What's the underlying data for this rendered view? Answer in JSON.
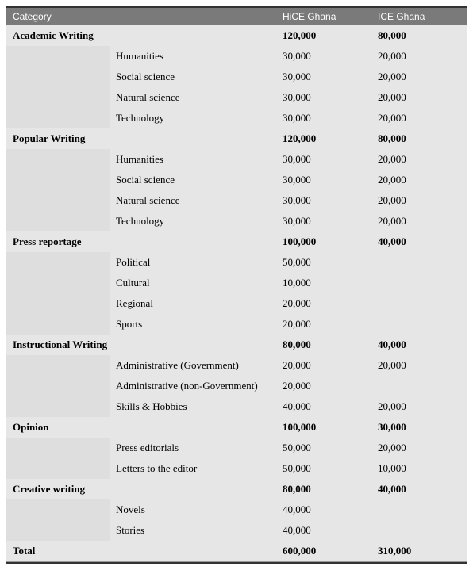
{
  "table": {
    "headers": [
      "Category",
      "",
      "HiCE Ghana",
      "ICE Ghana"
    ],
    "rows": [
      {
        "type": "category",
        "label": "Academic Writing",
        "hice": "120,000",
        "ice": "80,000"
      },
      {
        "type": "sub",
        "label": "Humanities",
        "hice": "30,000",
        "ice": "20,000"
      },
      {
        "type": "sub",
        "label": "Social science",
        "hice": "30,000",
        "ice": "20,000"
      },
      {
        "type": "sub",
        "label": "Natural science",
        "hice": "30,000",
        "ice": "20,000"
      },
      {
        "type": "sub",
        "label": "Technology",
        "hice": "30,000",
        "ice": "20,000"
      },
      {
        "type": "category",
        "label": "Popular Writing",
        "hice": "120,000",
        "ice": "80,000"
      },
      {
        "type": "sub",
        "label": "Humanities",
        "hice": "30,000",
        "ice": "20,000"
      },
      {
        "type": "sub",
        "label": "Social science",
        "hice": "30,000",
        "ice": "20,000"
      },
      {
        "type": "sub",
        "label": "Natural science",
        "hice": "30,000",
        "ice": "20,000"
      },
      {
        "type": "sub",
        "label": "Technology",
        "hice": "30,000",
        "ice": "20,000"
      },
      {
        "type": "category",
        "label": "Press reportage",
        "hice": "100,000",
        "ice": "40,000"
      },
      {
        "type": "sub",
        "label": "Political",
        "hice": "50,000",
        "ice": ""
      },
      {
        "type": "sub",
        "label": "Cultural",
        "hice": "10,000",
        "ice": ""
      },
      {
        "type": "sub",
        "label": "Regional",
        "hice": "20,000",
        "ice": ""
      },
      {
        "type": "sub",
        "label": "Sports",
        "hice": "20,000",
        "ice": ""
      },
      {
        "type": "category",
        "label": "Instructional Writing",
        "hice": "80,000",
        "ice": "40,000"
      },
      {
        "type": "sub",
        "label": "Administrative (Government)",
        "hice": "20,000",
        "ice": "20,000"
      },
      {
        "type": "sub",
        "label": "Administrative (non-Government)",
        "hice": "20,000",
        "ice": ""
      },
      {
        "type": "sub",
        "label": "Skills & Hobbies",
        "hice": "40,000",
        "ice": "20,000"
      },
      {
        "type": "category",
        "label": "Opinion",
        "hice": "100,000",
        "ice": "30,000"
      },
      {
        "type": "sub",
        "label": "Press editorials",
        "hice": "50,000",
        "ice": "20,000"
      },
      {
        "type": "sub",
        "label": "Letters to the editor",
        "hice": "50,000",
        "ice": "10,000"
      },
      {
        "type": "category",
        "label": "Creative writing",
        "hice": "80,000",
        "ice": "40,000"
      },
      {
        "type": "sub",
        "label": "Novels",
        "hice": "40,000",
        "ice": ""
      },
      {
        "type": "sub",
        "label": "Stories",
        "hice": "40,000",
        "ice": ""
      },
      {
        "type": "total",
        "label": "Total",
        "hice": "600,000",
        "ice": "310,000"
      }
    ]
  }
}
